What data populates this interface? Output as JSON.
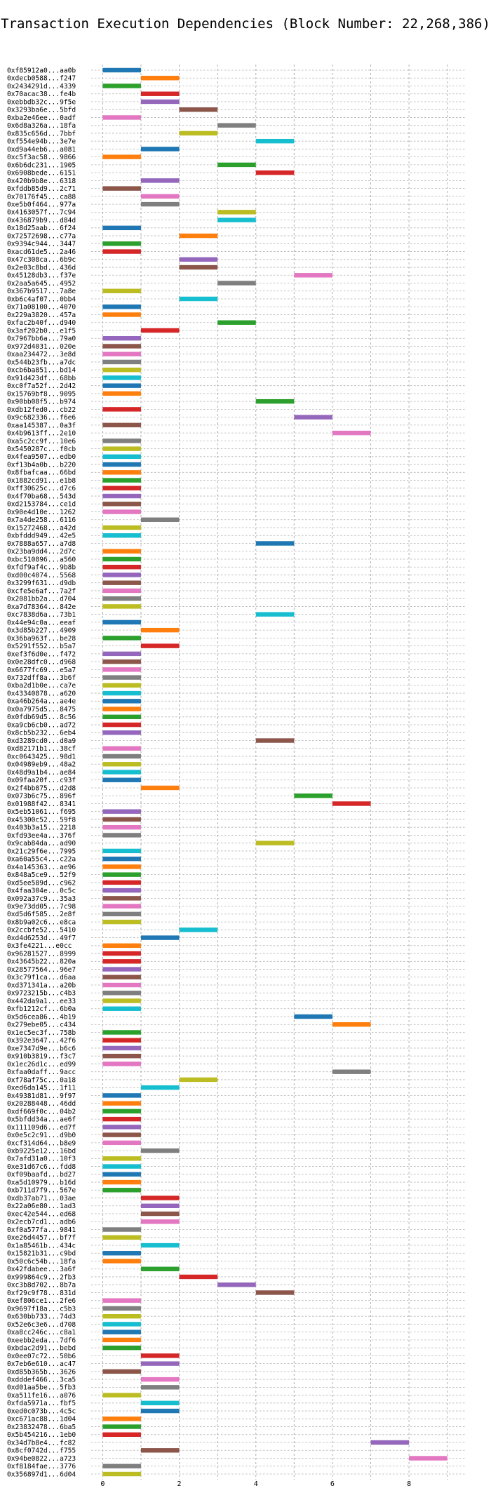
{
  "chart_data": {
    "type": "bar",
    "orientation": "horizontal",
    "title": "Transaction Execution Dependencies (Block Number: 22,268,386)",
    "xlabel": "",
    "ylabel": "",
    "xlim": [
      -0.3,
      9.5
    ],
    "xticks": [
      0,
      2,
      4,
      6,
      8
    ],
    "grid": true,
    "legend": "none",
    "bar_height": 0.6,
    "palette": [
      "#1f77b4",
      "#ff7f0e",
      "#2ca02c",
      "#d62728",
      "#9467bd",
      "#8c564b",
      "#e377c2",
      "#7f7f7f",
      "#bcbd22",
      "#17becf"
    ],
    "transactions": [
      {
        "hash": "0xf85912a0...aa0b",
        "start": 0,
        "color": "#1f77b4"
      },
      {
        "hash": "0xdecb0588...f247",
        "start": 1,
        "color": "#ff7f0e"
      },
      {
        "hash": "0x2434291d...4339",
        "start": 0,
        "color": "#2ca02c"
      },
      {
        "hash": "0x70acac38...fe4b",
        "start": 1,
        "color": "#d62728"
      },
      {
        "hash": "0xebbdb32c...9f5e",
        "start": 1,
        "color": "#9467bd"
      },
      {
        "hash": "0x3293ba6e...5bfd",
        "start": 2,
        "color": "#8c564b"
      },
      {
        "hash": "0xba2e46ee...0adf",
        "start": 0,
        "color": "#e377c2"
      },
      {
        "hash": "0x6d8a326a...18fa",
        "start": 3,
        "color": "#7f7f7f"
      },
      {
        "hash": "0x835c656d...7bbf",
        "start": 2,
        "color": "#bcbd22"
      },
      {
        "hash": "0xf554e94b...3e7e",
        "start": 4,
        "color": "#17becf"
      },
      {
        "hash": "0xd9a44eb6...a081",
        "start": 1,
        "color": "#1f77b4"
      },
      {
        "hash": "0xc5f3ac58...9866",
        "start": 0,
        "color": "#ff7f0e"
      },
      {
        "hash": "0x6b6dc231...1905",
        "start": 3,
        "color": "#2ca02c"
      },
      {
        "hash": "0x6908bede...6151",
        "start": 4,
        "color": "#d62728"
      },
      {
        "hash": "0x420b9b8e...6318",
        "start": 1,
        "color": "#9467bd"
      },
      {
        "hash": "0xfddb85d9...2c71",
        "start": 0,
        "color": "#8c564b"
      },
      {
        "hash": "0x70176f45...ca88",
        "start": 1,
        "color": "#e377c2"
      },
      {
        "hash": "0xe5b0f464...977a",
        "start": 1,
        "color": "#7f7f7f"
      },
      {
        "hash": "0x4163057f...7c94",
        "start": 3,
        "color": "#bcbd22"
      },
      {
        "hash": "0x436879b9...d84d",
        "start": 3,
        "color": "#17becf"
      },
      {
        "hash": "0x18d25aab...6f24",
        "start": 0,
        "color": "#1f77b4"
      },
      {
        "hash": "0x72572698...c77a",
        "start": 2,
        "color": "#ff7f0e"
      },
      {
        "hash": "0x9394c944...3447",
        "start": 0,
        "color": "#2ca02c"
      },
      {
        "hash": "0xacd61de5...2a46",
        "start": 0,
        "color": "#d62728"
      },
      {
        "hash": "0x47c308ca...6b9c",
        "start": 2,
        "color": "#9467bd"
      },
      {
        "hash": "0x2e03c8bd...436d",
        "start": 2,
        "color": "#8c564b"
      },
      {
        "hash": "0x45128db3...f37e",
        "start": 5,
        "color": "#e377c2"
      },
      {
        "hash": "0x2aa5a645...4952",
        "start": 3,
        "color": "#7f7f7f"
      },
      {
        "hash": "0x367b9517...7a8e",
        "start": 0,
        "color": "#bcbd22"
      },
      {
        "hash": "0xb6c4af07...0bb4",
        "start": 2,
        "color": "#17becf"
      },
      {
        "hash": "0x71a08100...4070",
        "start": 0,
        "color": "#1f77b4"
      },
      {
        "hash": "0x229a3820...457a",
        "start": 0,
        "color": "#ff7f0e"
      },
      {
        "hash": "0xfac2b40f...d940",
        "start": 3,
        "color": "#2ca02c"
      },
      {
        "hash": "0x3af202b0...e1f5",
        "start": 1,
        "color": "#d62728"
      },
      {
        "hash": "0x7967bb6a...79a0",
        "start": 0,
        "color": "#9467bd"
      },
      {
        "hash": "0x972d4031...020e",
        "start": 0,
        "color": "#8c564b"
      },
      {
        "hash": "0xaa234472...3e8d",
        "start": 0,
        "color": "#e377c2"
      },
      {
        "hash": "0x544b23fb...a7dc",
        "start": 0,
        "color": "#7f7f7f"
      },
      {
        "hash": "0xcb6ba851...bd14",
        "start": 0,
        "color": "#bcbd22"
      },
      {
        "hash": "0x91d423df...68bb",
        "start": 0,
        "color": "#17becf"
      },
      {
        "hash": "0xc0f7a52f...2d42",
        "start": 0,
        "color": "#1f77b4"
      },
      {
        "hash": "0x15769bf8...9095",
        "start": 0,
        "color": "#ff7f0e"
      },
      {
        "hash": "0x90bb08f5...b974",
        "start": 4,
        "color": "#2ca02c"
      },
      {
        "hash": "0xdb12fed0...cb22",
        "start": 0,
        "color": "#d62728"
      },
      {
        "hash": "0x9c682336...f6e6",
        "start": 5,
        "color": "#9467bd"
      },
      {
        "hash": "0xaa145387...0a3f",
        "start": 0,
        "color": "#8c564b"
      },
      {
        "hash": "0x4b9613ff...2e10",
        "start": 6,
        "color": "#e377c2"
      },
      {
        "hash": "0xa5c2cc9f...10e6",
        "start": 0,
        "color": "#7f7f7f"
      },
      {
        "hash": "0x5450287c...f0cb",
        "start": 0,
        "color": "#bcbd22"
      },
      {
        "hash": "0x4fea9507...edb0",
        "start": 0,
        "color": "#17becf"
      },
      {
        "hash": "0xf13b4a0b...b220",
        "start": 0,
        "color": "#1f77b4"
      },
      {
        "hash": "0x8fbafcaa...66bd",
        "start": 0,
        "color": "#ff7f0e"
      },
      {
        "hash": "0x1882cd91...e1b8",
        "start": 0,
        "color": "#2ca02c"
      },
      {
        "hash": "0xff30625c...d7c6",
        "start": 0,
        "color": "#d62728"
      },
      {
        "hash": "0x4f70ba68...543d",
        "start": 0,
        "color": "#9467bd"
      },
      {
        "hash": "0xd2153784...ce1d",
        "start": 0,
        "color": "#8c564b"
      },
      {
        "hash": "0x90e4d10e...1262",
        "start": 0,
        "color": "#e377c2"
      },
      {
        "hash": "0x7a4de258...6116",
        "start": 1,
        "color": "#7f7f7f"
      },
      {
        "hash": "0x15272468...a42d",
        "start": 0,
        "color": "#bcbd22"
      },
      {
        "hash": "0xbfddd949...42e5",
        "start": 0,
        "color": "#17becf"
      },
      {
        "hash": "0x7888a657...a7d8",
        "start": 4,
        "color": "#1f77b4"
      },
      {
        "hash": "0x23ba9dd4...2d7c",
        "start": 0,
        "color": "#ff7f0e"
      },
      {
        "hash": "0xbc510896...a560",
        "start": 0,
        "color": "#2ca02c"
      },
      {
        "hash": "0xfdf9af4c...9b8b",
        "start": 0,
        "color": "#d62728"
      },
      {
        "hash": "0xd00c4074...5568",
        "start": 0,
        "color": "#9467bd"
      },
      {
        "hash": "0x3299f631...d9db",
        "start": 0,
        "color": "#8c564b"
      },
      {
        "hash": "0xcfe5e6af...7a2f",
        "start": 0,
        "color": "#e377c2"
      },
      {
        "hash": "0x2081bb2a...d704",
        "start": 0,
        "color": "#7f7f7f"
      },
      {
        "hash": "0xa7d78364...842e",
        "start": 0,
        "color": "#bcbd22"
      },
      {
        "hash": "0xc7838d6a...73b1",
        "start": 4,
        "color": "#17becf"
      },
      {
        "hash": "0x44e94c0a...eeaf",
        "start": 0,
        "color": "#1f77b4"
      },
      {
        "hash": "0x3d85b227...4909",
        "start": 1,
        "color": "#ff7f0e"
      },
      {
        "hash": "0x36ba963f...be28",
        "start": 0,
        "color": "#2ca02c"
      },
      {
        "hash": "0x5291f552...b5a7",
        "start": 1,
        "color": "#d62728"
      },
      {
        "hash": "0xef3f6d0e...f472",
        "start": 0,
        "color": "#9467bd"
      },
      {
        "hash": "0x0e28dfc0...d968",
        "start": 0,
        "color": "#8c564b"
      },
      {
        "hash": "0x6677fc69...e5a7",
        "start": 0,
        "color": "#e377c2"
      },
      {
        "hash": "0x732dff8a...3b6f",
        "start": 0,
        "color": "#7f7f7f"
      },
      {
        "hash": "0xba2d1b0e...ca7e",
        "start": 0,
        "color": "#bcbd22"
      },
      {
        "hash": "0x43340878...a620",
        "start": 0,
        "color": "#17becf"
      },
      {
        "hash": "0xa46b264a...ae4e",
        "start": 0,
        "color": "#1f77b4"
      },
      {
        "hash": "0x0a7975d5...8475",
        "start": 0,
        "color": "#ff7f0e"
      },
      {
        "hash": "0x0fdb69d5...8c56",
        "start": 0,
        "color": "#2ca02c"
      },
      {
        "hash": "0xa9cb6cb0...ad72",
        "start": 0,
        "color": "#d62728"
      },
      {
        "hash": "0x8cb5b232...6eb4",
        "start": 0,
        "color": "#9467bd"
      },
      {
        "hash": "0xd3289cd0...d0a9",
        "start": 4,
        "color": "#8c564b"
      },
      {
        "hash": "0xd82171b1...38cf",
        "start": 0,
        "color": "#e377c2"
      },
      {
        "hash": "0xc0643425...98d1",
        "start": 0,
        "color": "#7f7f7f"
      },
      {
        "hash": "0x04989eb9...48a2",
        "start": 0,
        "color": "#bcbd22"
      },
      {
        "hash": "0x48d9a1b4...ae84",
        "start": 0,
        "color": "#17becf"
      },
      {
        "hash": "0x09faa20f...c93f",
        "start": 0,
        "color": "#1f77b4"
      },
      {
        "hash": "0x2f4bb875...d2d8",
        "start": 1,
        "color": "#ff7f0e"
      },
      {
        "hash": "0x073b6c75...896f",
        "start": 5,
        "color": "#2ca02c"
      },
      {
        "hash": "0x01988f42...8341",
        "start": 6,
        "color": "#d62728"
      },
      {
        "hash": "0x5eb51061...f695",
        "start": 0,
        "color": "#9467bd"
      },
      {
        "hash": "0x45300c52...59f8",
        "start": 0,
        "color": "#8c564b"
      },
      {
        "hash": "0x403b3a15...2218",
        "start": 0,
        "color": "#e377c2"
      },
      {
        "hash": "0xfd93ee4a...376f",
        "start": 0,
        "color": "#7f7f7f"
      },
      {
        "hash": "0x9cab84da...ad90",
        "start": 4,
        "color": "#bcbd22"
      },
      {
        "hash": "0x21c29f6e...7995",
        "start": 0,
        "color": "#17becf"
      },
      {
        "hash": "0xa60a55c4...c22a",
        "start": 0,
        "color": "#1f77b4"
      },
      {
        "hash": "0x4a145363...ae96",
        "start": 0,
        "color": "#ff7f0e"
      },
      {
        "hash": "0x848a5ce9...52f9",
        "start": 0,
        "color": "#2ca02c"
      },
      {
        "hash": "0xd5ee589d...c962",
        "start": 0,
        "color": "#d62728"
      },
      {
        "hash": "0x4faa304e...0c5c",
        "start": 0,
        "color": "#9467bd"
      },
      {
        "hash": "0x092a37c9...35a3",
        "start": 0,
        "color": "#8c564b"
      },
      {
        "hash": "0x9e73dd05...7c98",
        "start": 0,
        "color": "#e377c2"
      },
      {
        "hash": "0xd5d6f585...2e8f",
        "start": 0,
        "color": "#7f7f7f"
      },
      {
        "hash": "0x8b9a02c6...e8ca",
        "start": 0,
        "color": "#bcbd22"
      },
      {
        "hash": "0x2ccbfe52...5410",
        "start": 2,
        "color": "#17becf"
      },
      {
        "hash": "0xd4d6253d...49f7",
        "start": 1,
        "color": "#1f77b4"
      },
      {
        "hash": "0x3fe4221...e0cc",
        "start": 0,
        "color": "#ff7f0e"
      },
      {
        "hash": "0x96281527...8999",
        "start": 0,
        "color": "#d62728"
      },
      {
        "hash": "0x43645b22...820a",
        "start": 0,
        "color": "#d62728"
      },
      {
        "hash": "0x28577564...96e7",
        "start": 0,
        "color": "#9467bd"
      },
      {
        "hash": "0x3c79f1ca...d6aa",
        "start": 0,
        "color": "#8c564b"
      },
      {
        "hash": "0xd371341a...a20b",
        "start": 0,
        "color": "#e377c2"
      },
      {
        "hash": "0x9723215b...c4b3",
        "start": 0,
        "color": "#7f7f7f"
      },
      {
        "hash": "0x442da9a1...ee33",
        "start": 0,
        "color": "#bcbd22"
      },
      {
        "hash": "0xfb1212cf...6b0a",
        "start": 0,
        "color": "#17becf"
      },
      {
        "hash": "0x5d6cea86...4b19",
        "start": 5,
        "color": "#1f77b4"
      },
      {
        "hash": "0x279ebe05...c434",
        "start": 6,
        "color": "#ff7f0e"
      },
      {
        "hash": "0x1ec5ec3f...758b",
        "start": 0,
        "color": "#2ca02c"
      },
      {
        "hash": "0x392e3647...42f6",
        "start": 0,
        "color": "#d62728"
      },
      {
        "hash": "0xe7347d9e...b6c6",
        "start": 0,
        "color": "#9467bd"
      },
      {
        "hash": "0x910b3819...f3c7",
        "start": 0,
        "color": "#8c564b"
      },
      {
        "hash": "0x1ec26d1c...ed99",
        "start": 0,
        "color": "#e377c2"
      },
      {
        "hash": "0xfaa0daff...9acc",
        "start": 6,
        "color": "#7f7f7f"
      },
      {
        "hash": "0xf78af75c...0a18",
        "start": 2,
        "color": "#bcbd22"
      },
      {
        "hash": "0xed6da145...1f11",
        "start": 1,
        "color": "#17becf"
      },
      {
        "hash": "0x49381d81...9f97",
        "start": 0,
        "color": "#1f77b4"
      },
      {
        "hash": "0x20288448...46dd",
        "start": 0,
        "color": "#ff7f0e"
      },
      {
        "hash": "0xdf669f0c...04b2",
        "start": 0,
        "color": "#2ca02c"
      },
      {
        "hash": "0x5bfdd34a...ae6f",
        "start": 0,
        "color": "#d62728"
      },
      {
        "hash": "0x111109d6...ed7f",
        "start": 0,
        "color": "#9467bd"
      },
      {
        "hash": "0x0e5c2c91...d9b0",
        "start": 0,
        "color": "#8c564b"
      },
      {
        "hash": "0xcf314d64...b8e9",
        "start": 0,
        "color": "#e377c2"
      },
      {
        "hash": "0xb9225e12...16bd",
        "start": 1,
        "color": "#7f7f7f"
      },
      {
        "hash": "0x7afd31a0...10f3",
        "start": 0,
        "color": "#bcbd22"
      },
      {
        "hash": "0xe31d67c6...fdd8",
        "start": 0,
        "color": "#17becf"
      },
      {
        "hash": "0xf09baafd...bd27",
        "start": 0,
        "color": "#1f77b4"
      },
      {
        "hash": "0xa5d10979...b16d",
        "start": 0,
        "color": "#ff7f0e"
      },
      {
        "hash": "0xb711d7f9...567e",
        "start": 0,
        "color": "#2ca02c"
      },
      {
        "hash": "0xdb37ab71...03ae",
        "start": 1,
        "color": "#d62728"
      },
      {
        "hash": "0x22a06e80...1ad3",
        "start": 1,
        "color": "#9467bd"
      },
      {
        "hash": "0xec42e544...ed68",
        "start": 1,
        "color": "#8c564b"
      },
      {
        "hash": "0x2ecb7cd1...adb6",
        "start": 1,
        "color": "#e377c2"
      },
      {
        "hash": "0xf0a577fa...9841",
        "start": 0,
        "color": "#7f7f7f"
      },
      {
        "hash": "0xe26d4457...bf7f",
        "start": 0,
        "color": "#bcbd22"
      },
      {
        "hash": "0x1a85461b...434c",
        "start": 1,
        "color": "#17becf"
      },
      {
        "hash": "0x15821b31...c9bd",
        "start": 0,
        "color": "#1f77b4"
      },
      {
        "hash": "0x50c6c54b...18fa",
        "start": 0,
        "color": "#ff7f0e"
      },
      {
        "hash": "0x42fdabee...3a6f",
        "start": 1,
        "color": "#2ca02c"
      },
      {
        "hash": "0x999864c9...2fb3",
        "start": 2,
        "color": "#d62728"
      },
      {
        "hash": "0xc3b8d702...8b7a",
        "start": 3,
        "color": "#9467bd"
      },
      {
        "hash": "0xf29c9f78...831d",
        "start": 4,
        "color": "#8c564b"
      },
      {
        "hash": "0xef806ce1...2fe6",
        "start": 0,
        "color": "#e377c2"
      },
      {
        "hash": "0x9697f18a...c5b3",
        "start": 0,
        "color": "#7f7f7f"
      },
      {
        "hash": "0x630bb733...74d3",
        "start": 0,
        "color": "#bcbd22"
      },
      {
        "hash": "0x52e6c3e6...d708",
        "start": 0,
        "color": "#17becf"
      },
      {
        "hash": "0xa8cc246c...c8a1",
        "start": 0,
        "color": "#1f77b4"
      },
      {
        "hash": "0xeebb2eda...7df6",
        "start": 0,
        "color": "#ff7f0e"
      },
      {
        "hash": "0xbdac2d91...bebd",
        "start": 0,
        "color": "#2ca02c"
      },
      {
        "hash": "0x0ee07c72...50b6",
        "start": 1,
        "color": "#d62728"
      },
      {
        "hash": "0x7eb6e610...ac47",
        "start": 1,
        "color": "#9467bd"
      },
      {
        "hash": "0xd85b365b...3626",
        "start": 0,
        "color": "#8c564b"
      },
      {
        "hash": "0xdddef466...3ca5",
        "start": 1,
        "color": "#e377c2"
      },
      {
        "hash": "0xd01aa5be...5fb3",
        "start": 1,
        "color": "#7f7f7f"
      },
      {
        "hash": "0xa511fe16...a076",
        "start": 0,
        "color": "#bcbd22"
      },
      {
        "hash": "0xfda5971a...fbf5",
        "start": 1,
        "color": "#17becf"
      },
      {
        "hash": "0xed0c073b...4c5c",
        "start": 1,
        "color": "#1f77b4"
      },
      {
        "hash": "0xc671ac88...1d04",
        "start": 0,
        "color": "#ff7f0e"
      },
      {
        "hash": "0x23832478...6ba5",
        "start": 0,
        "color": "#2ca02c"
      },
      {
        "hash": "0x5b454216...1eb0",
        "start": 0,
        "color": "#d62728"
      },
      {
        "hash": "0x34d7b8e4...fc82",
        "start": 7,
        "color": "#9467bd"
      },
      {
        "hash": "0x8cf0742d...f755",
        "start": 1,
        "color": "#8c564b"
      },
      {
        "hash": "0x94be0822...a723",
        "start": 8,
        "color": "#e377c2"
      },
      {
        "hash": "0xf8184fae...3776",
        "start": 0,
        "color": "#7f7f7f"
      },
      {
        "hash": "0x356897d1...6d04",
        "start": 0,
        "color": "#bcbd22"
      }
    ]
  }
}
